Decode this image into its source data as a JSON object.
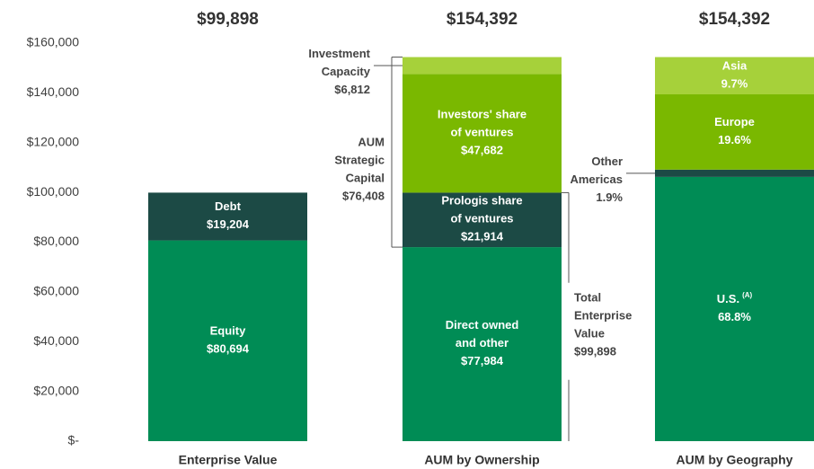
{
  "chart_data": {
    "type": "stacked_bar",
    "categories": [
      "Enterprise Value",
      "AUM by Ownership",
      "AUM by Geography"
    ],
    "totals": [
      99898,
      154392,
      154392
    ],
    "total_labels": [
      "$99,898",
      "$154,392",
      "$154,392"
    ],
    "ylim": [
      0,
      160000
    ],
    "yticks": [
      {
        "value": 0,
        "label": "$-"
      },
      {
        "value": 20000,
        "label": "$20,000"
      },
      {
        "value": 40000,
        "label": "$40,000"
      },
      {
        "value": 60000,
        "label": "$60,000"
      },
      {
        "value": 80000,
        "label": "$80,000"
      },
      {
        "value": 100000,
        "label": "$100,000"
      },
      {
        "value": 120000,
        "label": "$120,000"
      },
      {
        "value": 140000,
        "label": "$140,000"
      },
      {
        "value": 160000,
        "label": "$160,000"
      }
    ],
    "bars": [
      {
        "segments": [
          {
            "name": [
              "Equity"
            ],
            "value": 80694,
            "value_label": "$80,694",
            "color": "#008c55"
          },
          {
            "name": [
              "Debt"
            ],
            "value": 19204,
            "value_label": "$19,204",
            "color": "#1c4a45"
          }
        ]
      },
      {
        "segments": [
          {
            "name": [
              "Direct owned",
              "and other"
            ],
            "value": 77984,
            "value_label": "$77,984",
            "color": "#008c55"
          },
          {
            "name": [
              "Prologis share",
              "of ventures"
            ],
            "value": 21914,
            "value_label": "$21,914",
            "color": "#1c4a45"
          },
          {
            "name": [
              "Investors' share",
              "of ventures"
            ],
            "value": 47682,
            "value_label": "$47,682",
            "color": "#7ab800"
          },
          {
            "name": [
              "Investment",
              "Capacity"
            ],
            "value": 6812,
            "value_label": "$6,812",
            "color": "#a6d13a",
            "label_side": "left"
          }
        ]
      },
      {
        "percent_of_total": true,
        "segments": [
          {
            "name": [
              "U.S."
            ],
            "note": "(A)",
            "value": 68.8,
            "value_label": "68.8%",
            "color": "#008c55"
          },
          {
            "name": [
              "Other",
              "Americas"
            ],
            "value": 1.9,
            "value_label": "1.9%",
            "color": "#1c4a45",
            "label_side": "left"
          },
          {
            "name": [
              "Europe"
            ],
            "value": 19.6,
            "value_label": "19.6%",
            "color": "#7ab800"
          },
          {
            "name": [
              "Asia"
            ],
            "value": 9.7,
            "value_label": "9.7%",
            "color": "#a6d13a"
          }
        ]
      }
    ],
    "annotations": [
      {
        "lines": [
          "AUM",
          "Strategic",
          "Capital"
        ],
        "value": 76408,
        "value_label": "$76,408",
        "side": "left"
      },
      {
        "lines": [
          "Total",
          "Enterprise",
          "Value"
        ],
        "value": 99898,
        "value_label": "$99,898",
        "side": "right"
      }
    ]
  }
}
